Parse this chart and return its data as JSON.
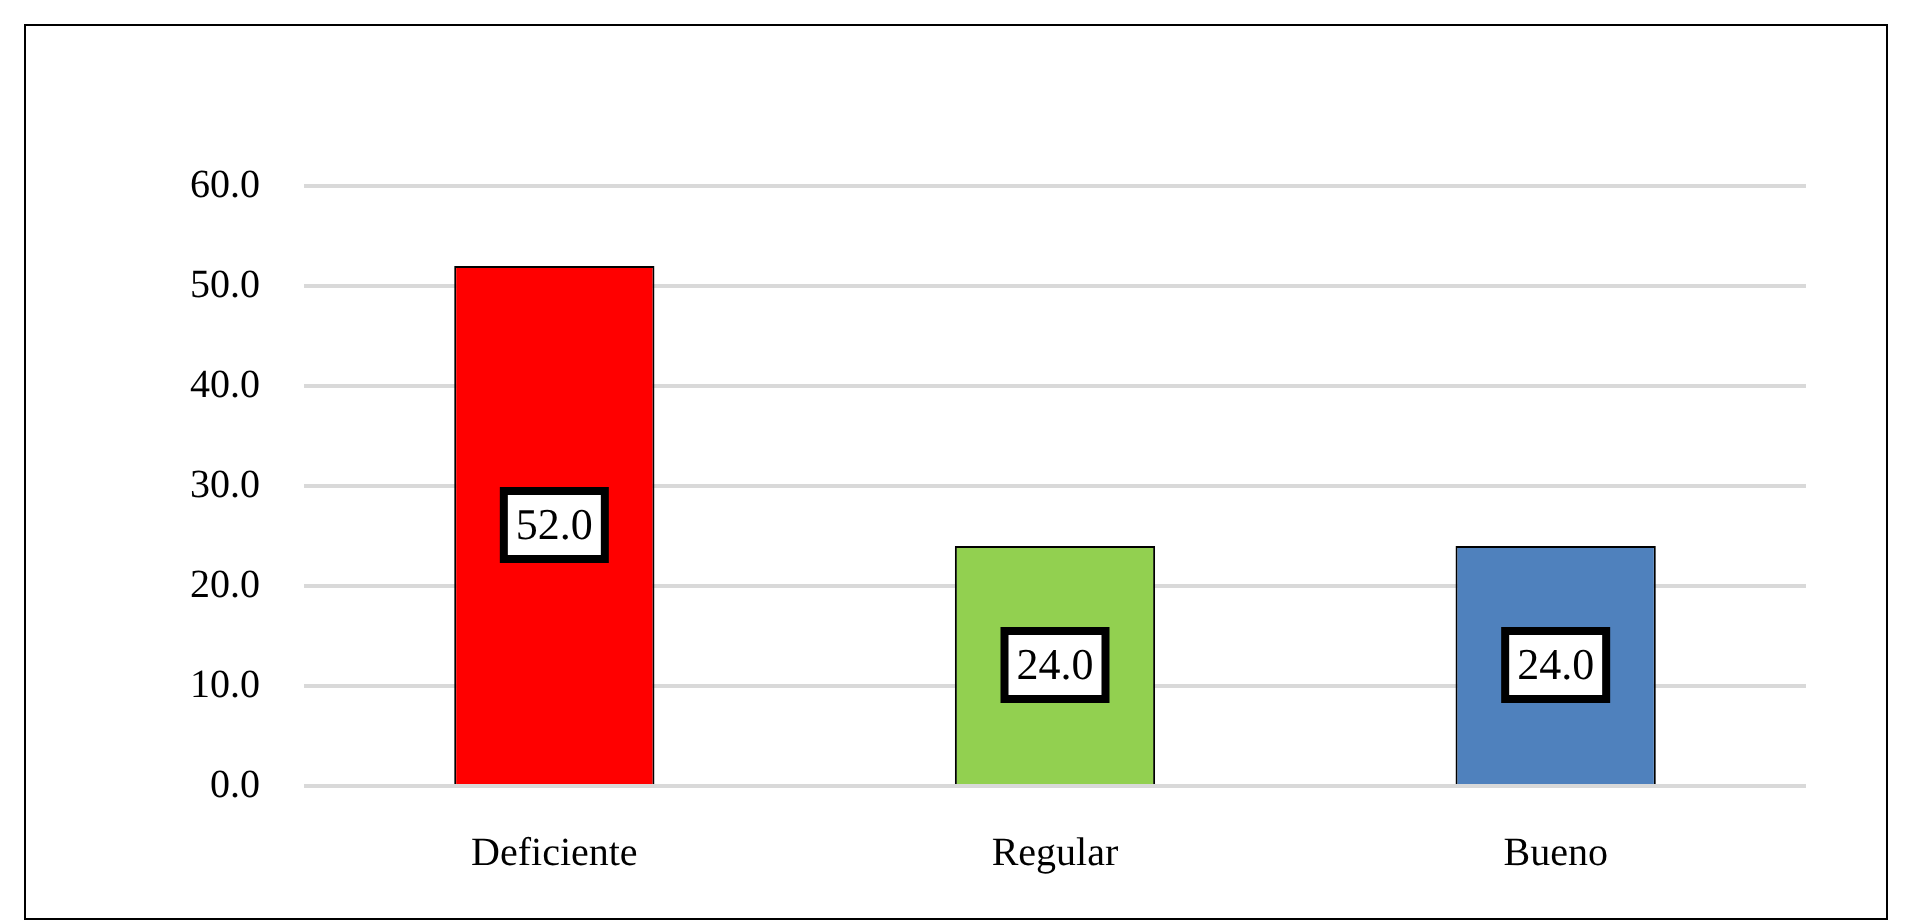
{
  "chart_data": {
    "type": "bar",
    "categories": [
      "Deficiente",
      "Regular",
      "Bueno"
    ],
    "values": [
      52.0,
      24.0,
      24.0
    ],
    "colors": [
      "#ff0000",
      "#92d050",
      "#4f81bd"
    ],
    "ylim": [
      0,
      60
    ],
    "yticks": [
      {
        "value": 0,
        "label": "0.0"
      },
      {
        "value": 10,
        "label": "10.0"
      },
      {
        "value": 20,
        "label": "20.0"
      },
      {
        "value": 30,
        "label": "30.0"
      },
      {
        "value": 40,
        "label": "40.0"
      },
      {
        "value": 50,
        "label": "50.0"
      },
      {
        "value": 60,
        "label": "60.0"
      }
    ],
    "value_labels": [
      "52.0",
      "24.0",
      "24.0"
    ],
    "grid": "y",
    "legend": false
  }
}
